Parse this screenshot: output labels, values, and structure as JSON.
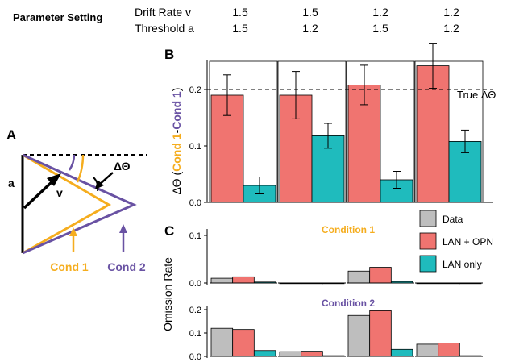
{
  "header": {
    "title": "Parameter Setting",
    "rows": [
      {
        "label": "Drift Rate v",
        "values": [
          "1.5",
          "1.5",
          "1.2",
          "1.2"
        ]
      },
      {
        "label": "Threshold a",
        "values": [
          "1.5",
          "1.2",
          "1.5",
          "1.2"
        ]
      }
    ]
  },
  "panel_labels": {
    "a": "A",
    "b": "B",
    "c": "C"
  },
  "diagram": {
    "label_a": "a",
    "label_v": "v",
    "label_dtheta": "ΔΘ",
    "cond1": "Cond 1",
    "cond2": "Cond 2",
    "colors": {
      "cond1": "#f5ad1e",
      "cond2": "#6952a3",
      "base": "#000000"
    }
  },
  "colors": {
    "red": "#f07470",
    "teal": "#1fbbbd",
    "gray": "#bebebe",
    "cond1_text": "#f5ad1e",
    "cond2_text": "#6952a3"
  },
  "ylabel_b": {
    "prefix": "ΔΘ (",
    "part1": "Cond 1",
    "dash": "-",
    "part2": "Cond 1",
    "suffix": ")"
  },
  "chart_data": [
    {
      "type": "bar",
      "panel": "B",
      "series": [
        {
          "values": [
            0.19,
            0.19,
            0.208,
            0.242
          ],
          "errors": [
            0.036,
            0.042,
            0.035,
            0.04
          ],
          "color": "#f07470"
        },
        {
          "values": [
            0.03,
            0.118,
            0.04,
            0.108
          ],
          "errors": [
            0.015,
            0.022,
            0.015,
            0.02
          ],
          "color": "#1fbbbd"
        }
      ],
      "ylim": [
        0,
        0.25
      ],
      "yticks": [
        {
          "value": 0.0,
          "label": "0.0"
        },
        {
          "value": 0.1,
          "label": "0.1"
        },
        {
          "value": 0.2,
          "label": "0.2"
        }
      ],
      "reference_line": {
        "value": 0.2,
        "label": "True ΔΘ"
      }
    },
    {
      "type": "bar",
      "panel": "C",
      "subtitle": "Condition 1",
      "series": [
        {
          "name": "Data",
          "values": [
            0.01,
            0,
            0.025,
            0
          ],
          "color": "#bebebe"
        },
        {
          "name": "LAN + OPN",
          "values": [
            0.013,
            0,
            0.033,
            0
          ],
          "color": "#f07470"
        },
        {
          "name": "LAN only",
          "values": [
            0.002,
            0,
            0.003,
            0
          ],
          "color": "#1fbbbd"
        }
      ],
      "ylim": [
        0,
        0.1
      ],
      "yticks": [
        {
          "value": 0.0,
          "label": "0.0"
        },
        {
          "value": 0.1,
          "label": "0.1"
        }
      ]
    },
    {
      "type": "bar",
      "panel": "C",
      "subtitle": "Condition 2",
      "series": [
        {
          "name": "Data",
          "values": [
            0.12,
            0.02,
            0.175,
            0.052
          ],
          "color": "#bebebe"
        },
        {
          "name": "LAN + OPN",
          "values": [
            0.115,
            0.022,
            0.195,
            0.057
          ],
          "color": "#f07470"
        },
        {
          "name": "LAN only",
          "values": [
            0.025,
            0.003,
            0.03,
            0.003
          ],
          "color": "#1fbbbd"
        }
      ],
      "ylim": [
        0,
        0.2
      ],
      "yticks": [
        {
          "value": 0.0,
          "label": "0.0"
        },
        {
          "value": 0.1,
          "label": "0.1"
        },
        {
          "value": 0.2,
          "label": "0.2"
        }
      ]
    }
  ],
  "ylabel_c": "Omission Rate",
  "legend": {
    "items": [
      {
        "label": "Data",
        "color": "#bebebe"
      },
      {
        "label": "LAN + OPN",
        "color": "#f07470"
      },
      {
        "label": "LAN only",
        "color": "#1fbbbd"
      }
    ]
  }
}
